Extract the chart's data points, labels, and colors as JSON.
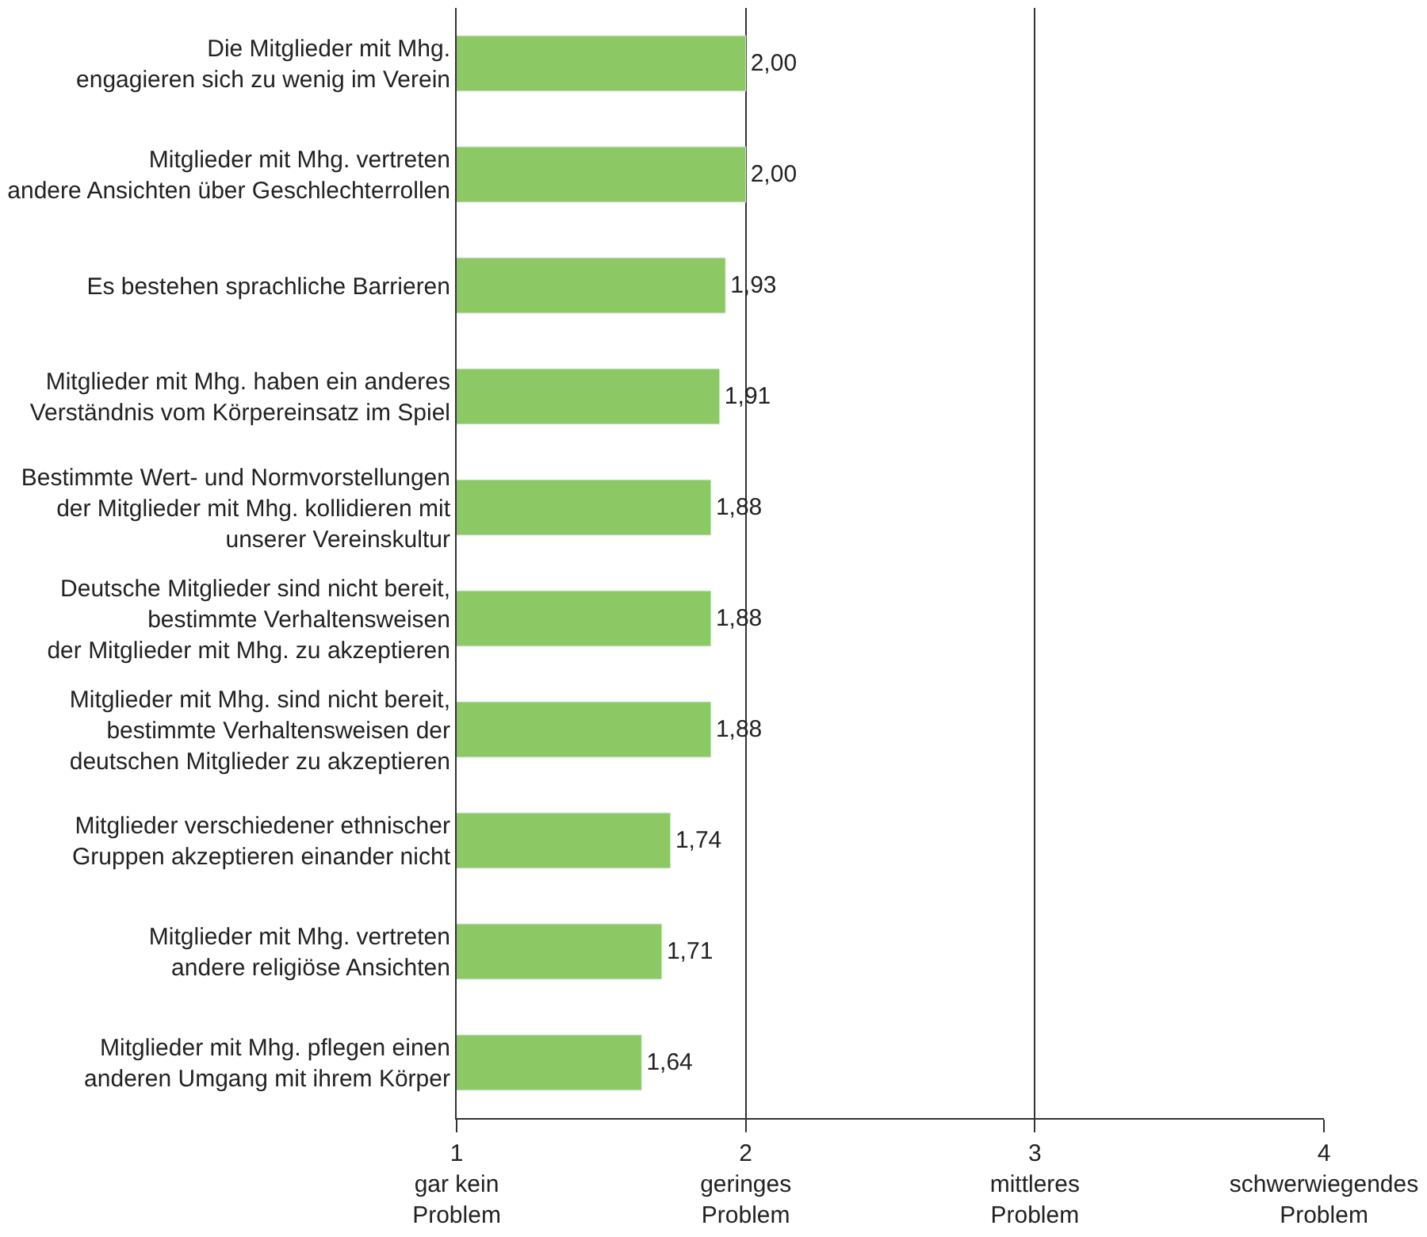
{
  "chart_data": {
    "type": "bar",
    "orientation": "horizontal",
    "categories": [
      "Die Mitglieder mit Mhg.\nengagieren sich zu wenig im Verein",
      "Mitglieder mit Mhg. vertreten\nandere Ansichten über Geschlechterrollen",
      "Es bestehen sprachliche Barrieren",
      "Mitglieder mit Mhg. haben ein anderes\nVerständnis vom Körpereinsatz im Spiel",
      "Bestimmte Wert- und Normvorstellungen\nder Mitglieder mit Mhg. kollidieren mit\nunserer Vereinskultur",
      "Deutsche Mitglieder sind nicht bereit,\nbestimmte Verhaltensweisen\nder Mitglieder mit Mhg. zu akzeptieren",
      "Mitglieder mit Mhg. sind nicht bereit,\nbestimmte Verhaltensweisen der\ndeutschen Mitglieder zu akzeptieren",
      "Mitglieder verschiedener ethnischer\nGruppen akzeptieren einander nicht",
      "Mitglieder mit Mhg. vertreten\nandere religiöse Ansichten",
      "Mitglieder mit Mhg. pflegen einen\nanderen Umgang mit ihrem Körper"
    ],
    "values": [
      2.0,
      2.0,
      1.93,
      1.91,
      1.88,
      1.88,
      1.88,
      1.74,
      1.71,
      1.64
    ],
    "value_labels": [
      "2,00",
      "2,00",
      "1,93",
      "1,91",
      "1,88",
      "1,88",
      "1,88",
      "1,74",
      "1,71",
      "1,64"
    ],
    "color": "#8cc864",
    "xlim": [
      1,
      4
    ],
    "xticks": [
      {
        "value": 1,
        "label": "1\ngar kein\nProblem"
      },
      {
        "value": 2,
        "label": "2\ngeringes\nProblem"
      },
      {
        "value": 3,
        "label": "3\nmittleres\nProblem"
      },
      {
        "value": 4,
        "label": "4\nschwerwiegendes\nProblem"
      }
    ],
    "grid": "x",
    "legend": false
  }
}
